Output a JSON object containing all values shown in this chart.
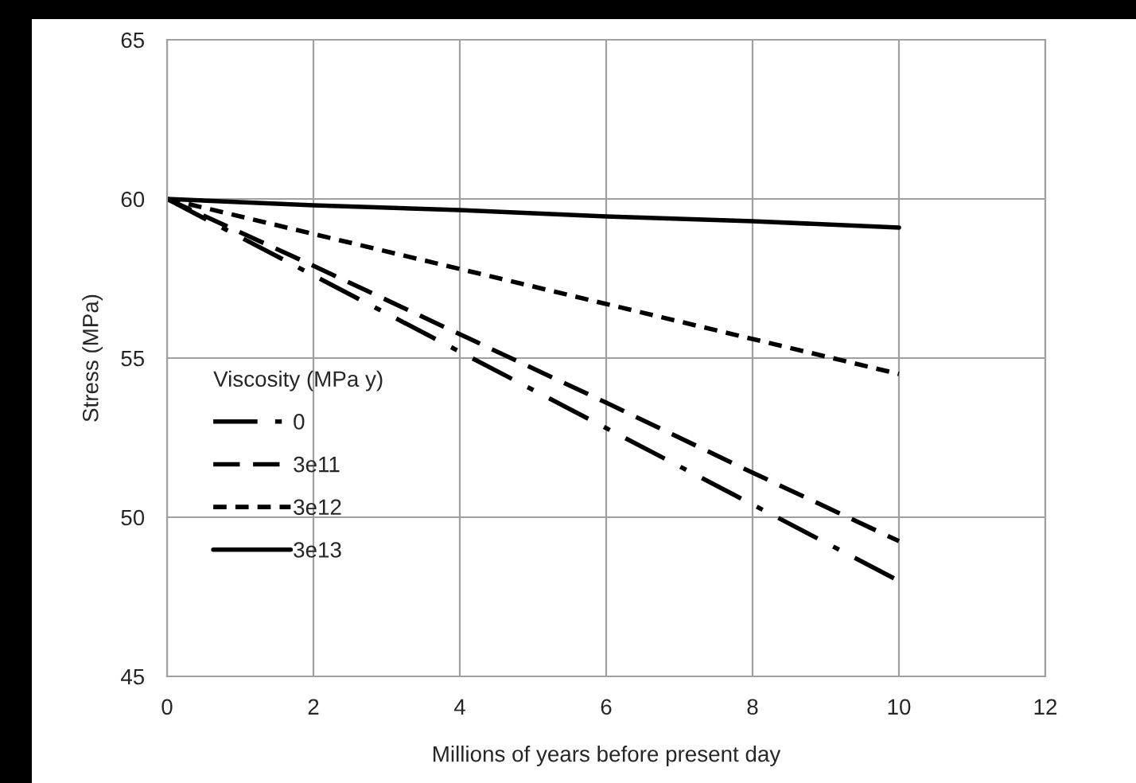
{
  "chart_data": {
    "type": "line",
    "xlabel": "Millions of years before present day",
    "ylabel": "Stress (MPa)",
    "legend_title": "Viscosity (MPa y)",
    "x": [
      0,
      2,
      4,
      6,
      8,
      10
    ],
    "series": [
      {
        "name": "0",
        "color": "#000000",
        "line_style": "dashdot",
        "values": [
          60,
          57.6,
          55.2,
          52.8,
          50.4,
          48.0
        ]
      },
      {
        "name": "3e11",
        "color": "#000000",
        "line_style": "dashed",
        "values": [
          60,
          57.9,
          55.75,
          53.6,
          51.4,
          49.25
        ]
      },
      {
        "name": "3e12",
        "color": "#000000",
        "line_style": "dotted",
        "values": [
          60,
          58.9,
          57.8,
          56.7,
          55.6,
          54.5
        ]
      },
      {
        "name": "3e13",
        "color": "#000000",
        "line_style": "solid",
        "values": [
          60,
          59.8,
          59.65,
          59.45,
          59.3,
          59.1
        ]
      }
    ],
    "xlim": [
      0,
      12
    ],
    "xticks": [
      0,
      2,
      4,
      6,
      8,
      10,
      12
    ],
    "ylim": [
      45,
      65
    ],
    "yticks": [
      45,
      50,
      55,
      60,
      65
    ],
    "grid": true,
    "legend": "left",
    "marker": "none"
  }
}
